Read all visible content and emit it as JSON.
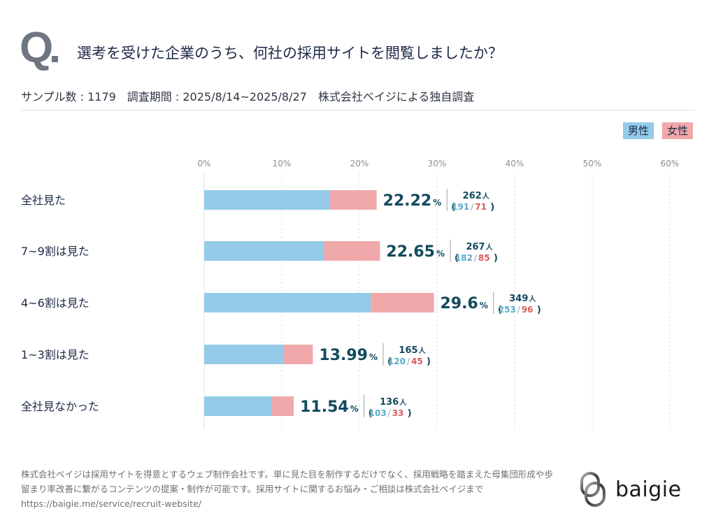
{
  "header": {
    "q_mark": "Q",
    "title": "選考を受けた企業のうち、何社の採用サイトを閲覧しましたか？",
    "subtitle": "サンプル数 : 1179　調査期間 : 2025/8/14~2025/8/27　株式会社ベイジによる独自調査"
  },
  "legend": {
    "male": "男性",
    "female": "女性"
  },
  "colors": {
    "male": "#94cbe8",
    "female": "#f0a8ab",
    "value_text": "#124a5e",
    "male_text": "#5aa9c8",
    "female_text": "#d85c5f",
    "grid": "#d6d6d6"
  },
  "chart_data": {
    "type": "bar",
    "orientation": "horizontal",
    "stacked": true,
    "title": "選考を受けた企業のうち、何社の採用サイトを閲覧しましたか？",
    "xlabel": "",
    "ylabel": "",
    "xlim": [
      0,
      60
    ],
    "x_ticks": [
      0,
      10,
      20,
      30,
      40,
      50,
      60
    ],
    "x_tick_labels": [
      "0%",
      "10%",
      "20%",
      "30%",
      "40%",
      "50%",
      "60%"
    ],
    "grid": true,
    "legend_position": "top-right",
    "total_sample": 1179,
    "categories": [
      "全社見た",
      "7~9割は見た",
      "4~6割は見た",
      "1~3割は見た",
      "全社見なかった"
    ],
    "series": [
      {
        "name": "男性",
        "counts": [
          191,
          182,
          253,
          120,
          103
        ],
        "values_pct": [
          16.2,
          15.44,
          21.46,
          10.18,
          8.74
        ]
      },
      {
        "name": "女性",
        "counts": [
          71,
          85,
          96,
          45,
          33
        ],
        "values_pct": [
          6.02,
          7.21,
          8.14,
          3.82,
          2.8
        ]
      }
    ],
    "totals_pct": [
      "22.22",
      "22.65",
      "29.6",
      "13.99",
      "11.54"
    ],
    "totals_count": [
      262,
      267,
      349,
      165,
      136
    ],
    "percent_unit": "%",
    "count_unit": "人"
  },
  "footer": {
    "description": "株式会社ベイジは採用サイトを得意とするウェブ制作会社です。単に見た目を制作するだけでなく、採用戦略を踏まえた母集団形成や歩留まり率改善に繋がるコンテンツの提案・制作が可能です。採用サイトに関するお悩み・ご相談は株式会社ベイジまで",
    "url": "https://baigie.me/service/recruit-website/"
  },
  "logo": {
    "text": "baigie",
    "icon": "baigie-rings-icon"
  }
}
